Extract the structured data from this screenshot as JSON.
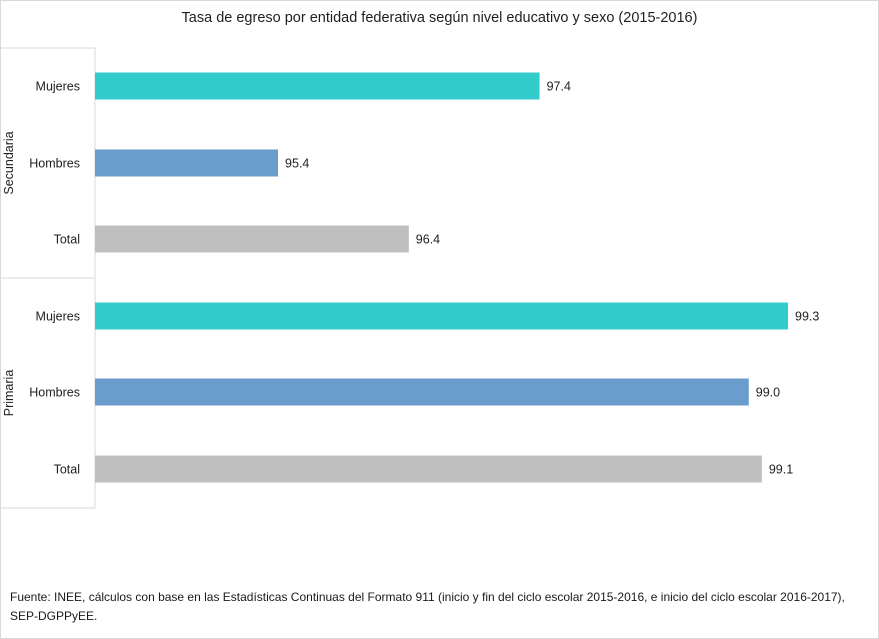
{
  "chart_data": {
    "type": "bar",
    "orientation": "horizontal",
    "title": "Tasa de egreso por entidad federativa según nivel educativo y sexo (2015-2016)",
    "xlim": [
      94,
      100
    ],
    "grid": false,
    "legend": "none",
    "groups": [
      {
        "name": "Secundaria",
        "bars": [
          {
            "category": "Mujeres",
            "value": 97.4,
            "label": "97.4",
            "color": "#33cccc"
          },
          {
            "category": "Hombres",
            "value": 95.4,
            "label": "95.4",
            "color": "#6a9ccc"
          },
          {
            "category": "Total",
            "value": 96.4,
            "label": "96.4",
            "color": "#bfbfbf"
          }
        ]
      },
      {
        "name": "Primaria",
        "bars": [
          {
            "category": "Mujeres",
            "value": 99.3,
            "label": "99.3",
            "color": "#33cccc"
          },
          {
            "category": "Hombres",
            "value": 99.0,
            "label": "99.0",
            "color": "#6a9ccc"
          },
          {
            "category": "Total",
            "value": 99.1,
            "label": "99.1",
            "color": "#bfbfbf"
          }
        ]
      }
    ]
  },
  "source_note": "Fuente: INEE, cálculos con base en las Estadísticas Continuas  del Formato 911 (inicio  y fin del ciclo escolar 2015-2016,  e inicio del ciclo escolar 2016-2017), SEP-DGPPyEE."
}
